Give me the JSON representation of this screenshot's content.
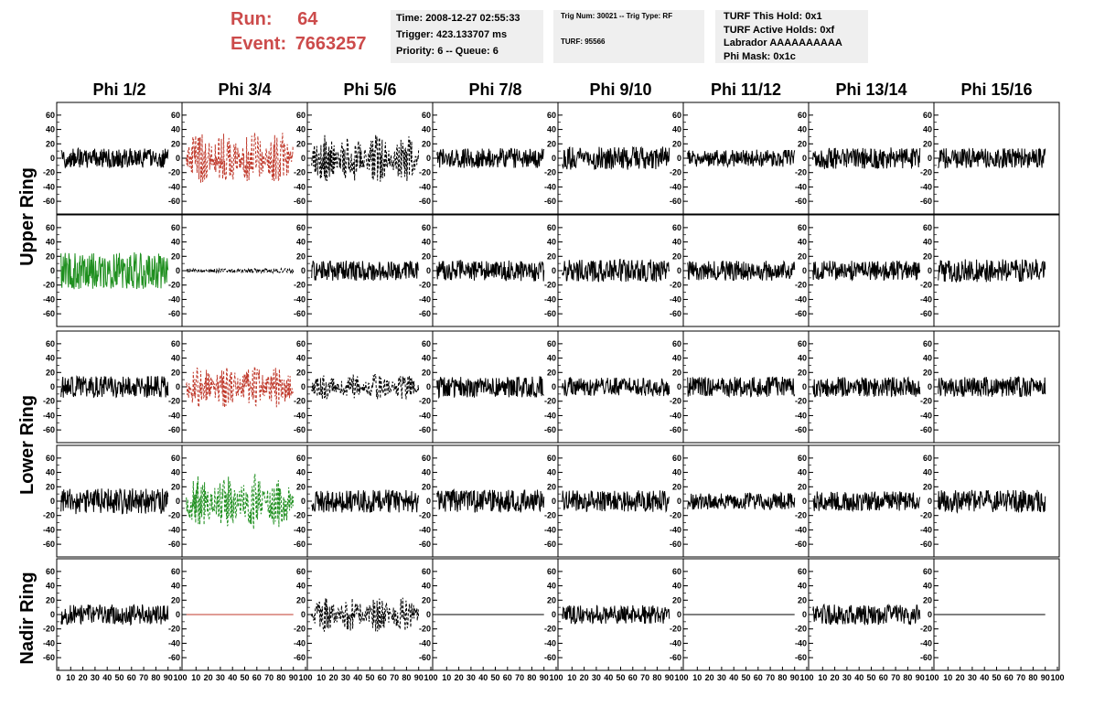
{
  "header": {
    "run_label": "Run:",
    "run_value": "64",
    "event_label": "Event:",
    "event_value": "7663257",
    "time": "Time: 2008-12-27 02:55:33",
    "trigger": "Trigger: 423.133707 ms",
    "priority": "Priority: 6 -- Queue: 6",
    "trig_info": "Trig Num: 30021 -- Trig Type: RF",
    "turf": "TURF: 95566",
    "turf_hold": "TURF This Hold: 0x1",
    "turf_active": "TURF Active Holds: 0xf",
    "labrador": "Labrador AAAAAAAAAA",
    "phi_mask": "Phi Mask: 0x1c"
  },
  "colors": {
    "header_red": "#cc4b4b",
    "trace_black": "#000000",
    "trace_red": "#c0392b",
    "trace_green": "#1f8f1f",
    "info_bg": "#efefef"
  },
  "chart_data": {
    "type": "line",
    "columns": [
      "Phi 1/2",
      "Phi 3/4",
      "Phi 5/6",
      "Phi 7/8",
      "Phi 9/10",
      "Phi 11/12",
      "Phi 13/14",
      "Phi 15/16"
    ],
    "ring_labels": [
      "Upper Ring",
      "Lower Ring",
      "Nadir Ring"
    ],
    "ylim": [
      -70,
      70
    ],
    "yticks": [
      -60,
      -40,
      -20,
      0,
      20,
      40,
      60
    ],
    "xlim": [
      0,
      100
    ],
    "xticks": [
      "0",
      "10",
      "20",
      "30",
      "40",
      "50",
      "60",
      "70",
      "80",
      "90",
      "100"
    ],
    "grid": false,
    "rows": [
      [
        {
          "color": "black",
          "style": "solid",
          "amp": 14,
          "shape": "flat"
        },
        {
          "color": "red",
          "style": "dashed",
          "amp": 38,
          "shape": "burst"
        },
        {
          "color": "black",
          "style": "dashed",
          "amp": 34,
          "shape": "burst"
        },
        {
          "color": "black",
          "style": "solid",
          "amp": 14,
          "shape": "flat"
        },
        {
          "color": "black",
          "style": "solid",
          "amp": 16,
          "shape": "flat"
        },
        {
          "color": "black",
          "style": "solid",
          "amp": 12,
          "shape": "flat"
        },
        {
          "color": "black",
          "style": "solid",
          "amp": 15,
          "shape": "flat"
        },
        {
          "color": "black",
          "style": "solid",
          "amp": 14,
          "shape": "flat"
        }
      ],
      [
        {
          "color": "green",
          "style": "solid",
          "amp": 26,
          "shape": "flat"
        },
        {
          "color": "black",
          "style": "dashed",
          "amp": 3,
          "shape": "flat"
        },
        {
          "color": "black",
          "style": "solid",
          "amp": 14,
          "shape": "flat"
        },
        {
          "color": "black",
          "style": "solid",
          "amp": 15,
          "shape": "flat"
        },
        {
          "color": "black",
          "style": "solid",
          "amp": 16,
          "shape": "flat"
        },
        {
          "color": "black",
          "style": "solid",
          "amp": 14,
          "shape": "flat"
        },
        {
          "color": "black",
          "style": "solid",
          "amp": 14,
          "shape": "flat"
        },
        {
          "color": "black",
          "style": "solid",
          "amp": 16,
          "shape": "flat"
        }
      ],
      [
        {
          "color": "black",
          "style": "solid",
          "amp": 15,
          "shape": "flat"
        },
        {
          "color": "red",
          "style": "dashed",
          "amp": 30,
          "shape": "burst"
        },
        {
          "color": "black",
          "style": "dashed",
          "amp": 18,
          "shape": "burst"
        },
        {
          "color": "black",
          "style": "solid",
          "amp": 15,
          "shape": "flat"
        },
        {
          "color": "black",
          "style": "solid",
          "amp": 13,
          "shape": "flat"
        },
        {
          "color": "black",
          "style": "solid",
          "amp": 14,
          "shape": "flat"
        },
        {
          "color": "black",
          "style": "solid",
          "amp": 14,
          "shape": "flat"
        },
        {
          "color": "black",
          "style": "solid",
          "amp": 14,
          "shape": "flat"
        }
      ],
      [
        {
          "color": "black",
          "style": "solid",
          "amp": 18,
          "shape": "flat"
        },
        {
          "color": "green",
          "style": "dashed",
          "amp": 40,
          "shape": "burst"
        },
        {
          "color": "black",
          "style": "solid",
          "amp": 16,
          "shape": "flat"
        },
        {
          "color": "black",
          "style": "solid",
          "amp": 16,
          "shape": "flat"
        },
        {
          "color": "black",
          "style": "solid",
          "amp": 15,
          "shape": "flat"
        },
        {
          "color": "black",
          "style": "solid",
          "amp": 12,
          "shape": "flat"
        },
        {
          "color": "black",
          "style": "solid",
          "amp": 14,
          "shape": "flat"
        },
        {
          "color": "black",
          "style": "solid",
          "amp": 16,
          "shape": "flat"
        }
      ],
      [
        {
          "color": "black",
          "style": "solid",
          "amp": 14,
          "shape": "flat"
        },
        {
          "color": "red",
          "style": "solid",
          "amp": 0,
          "shape": "zero"
        },
        {
          "color": "black",
          "style": "dashed",
          "amp": 24,
          "shape": "burst"
        },
        {
          "color": "black",
          "style": "solid",
          "amp": 0,
          "shape": "zero"
        },
        {
          "color": "black",
          "style": "solid",
          "amp": 13,
          "shape": "flat"
        },
        {
          "color": "black",
          "style": "solid",
          "amp": 0,
          "shape": "zero"
        },
        {
          "color": "black",
          "style": "solid",
          "amp": 14,
          "shape": "flat"
        },
        {
          "color": "black",
          "style": "solid",
          "amp": 0,
          "shape": "zero"
        }
      ]
    ]
  }
}
